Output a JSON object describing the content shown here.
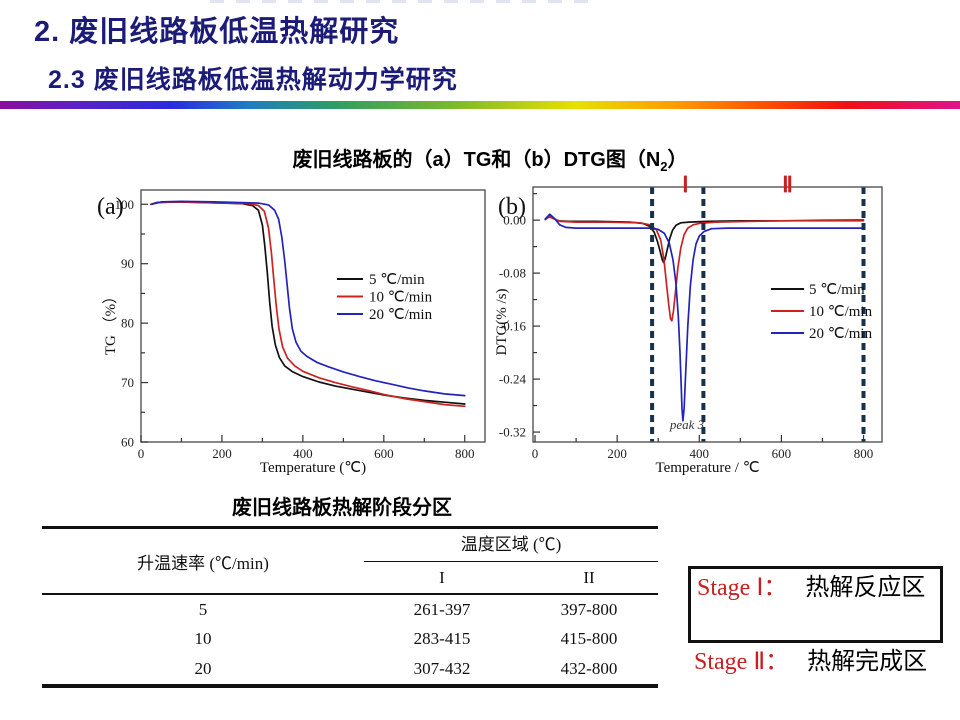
{
  "header": {
    "title": "2. 废旧线路板低温热解研究",
    "subtitle": "2.3 废旧线路板低温热解动力学研究"
  },
  "figure": {
    "title_pre": "废旧线路板的（a）TG和（b）DTG图（N",
    "title_sub": "2",
    "title_post": "）"
  },
  "colors": {
    "title_navy": "#1c1c78",
    "accent_red": "#c82020",
    "curve_black": "#111111",
    "curve_red": "#cc2222",
    "curve_blue": "#2323bb",
    "boundary_navy": "#17304e"
  },
  "chart_data": [
    {
      "type": "line",
      "panel_label": "(a)",
      "xlabel": "Temperature (℃)",
      "ylabel": "TG （%）",
      "xlim": [
        0,
        850
      ],
      "xticks": [
        0,
        200,
        400,
        600,
        800
      ],
      "x_minor_step": 100,
      "ylim": [
        60,
        102.4
      ],
      "yticks": [
        60,
        70,
        80,
        90,
        100
      ],
      "y_minor_step": 5,
      "ytick_format": "int",
      "grid": false,
      "legend_position": "middle-right",
      "series": [
        {
          "name": "5  ℃/min",
          "color": "#111111",
          "points": [
            [
              25,
              100
            ],
            [
              40,
              100.3
            ],
            [
              80,
              100.4
            ],
            [
              150,
              100.3
            ],
            [
              250,
              100.1
            ],
            [
              275,
              99.8
            ],
            [
              290,
              99
            ],
            [
              300,
              96.5
            ],
            [
              306,
              93
            ],
            [
              312,
              88.5
            ],
            [
              318,
              83.5
            ],
            [
              324,
              79.5
            ],
            [
              332,
              76.3
            ],
            [
              342,
              74.2
            ],
            [
              355,
              72.8
            ],
            [
              375,
              71.8
            ],
            [
              400,
              71
            ],
            [
              440,
              70.1
            ],
            [
              480,
              69.4
            ],
            [
              520,
              68.9
            ],
            [
              560,
              68.4
            ],
            [
              600,
              67.9
            ],
            [
              650,
              67.4
            ],
            [
              700,
              67
            ],
            [
              750,
              66.7
            ],
            [
              800,
              66.4
            ]
          ]
        },
        {
          "name": "10 ℃/min",
          "color": "#cc2222",
          "points": [
            [
              25,
              100
            ],
            [
              45,
              100.3
            ],
            [
              90,
              100.4
            ],
            [
              160,
              100.3
            ],
            [
              265,
              100.1
            ],
            [
              290,
              99.8
            ],
            [
              305,
              98.8
            ],
            [
              315,
              96
            ],
            [
              322,
              92
            ],
            [
              328,
              87.5
            ],
            [
              334,
              83
            ],
            [
              341,
              79
            ],
            [
              350,
              76
            ],
            [
              362,
              74.1
            ],
            [
              380,
              72.8
            ],
            [
              400,
              71.9
            ],
            [
              440,
              70.8
            ],
            [
              480,
              70
            ],
            [
              520,
              69.3
            ],
            [
              560,
              68.7
            ],
            [
              600,
              68
            ],
            [
              650,
              67.3
            ],
            [
              700,
              66.8
            ],
            [
              750,
              66.3
            ],
            [
              800,
              66
            ]
          ]
        },
        {
          "name": "20 ℃/min",
          "color": "#2323bb",
          "points": [
            [
              25,
              100
            ],
            [
              50,
              100.4
            ],
            [
              100,
              100.5
            ],
            [
              180,
              100.4
            ],
            [
              290,
              100.2
            ],
            [
              315,
              99.9
            ],
            [
              330,
              99
            ],
            [
              340,
              97.5
            ],
            [
              348,
              94.5
            ],
            [
              355,
              90.5
            ],
            [
              361,
              86.5
            ],
            [
              367,
              82.5
            ],
            [
              374,
              79
            ],
            [
              383,
              76.8
            ],
            [
              395,
              75.3
            ],
            [
              410,
              74.4
            ],
            [
              435,
              73.4
            ],
            [
              465,
              72.6
            ],
            [
              500,
              71.8
            ],
            [
              540,
              71
            ],
            [
              580,
              70.3
            ],
            [
              620,
              69.7
            ],
            [
              660,
              69.1
            ],
            [
              700,
              68.6
            ],
            [
              750,
              68.1
            ],
            [
              800,
              67.8
            ]
          ]
        }
      ]
    },
    {
      "type": "line",
      "panel_label": "(b)",
      "xlabel": "Temperature / ℃",
      "ylabel": "DTG(% /s)",
      "xlim": [
        -5,
        845
      ],
      "xticks": [
        0,
        200,
        400,
        600,
        800
      ],
      "x_minor_step": 100,
      "ylim": [
        -0.335,
        0.05
      ],
      "yticks": [
        0,
        -0.08,
        -0.16,
        -0.24,
        -0.32
      ],
      "y_minor_step": 0.04,
      "ytick_format": "2dp",
      "grid": false,
      "region_labels": [
        {
          "text": "Ⅰ",
          "x": 366
        },
        {
          "text": "Ⅱ",
          "x": 615
        }
      ],
      "boundaries_x": [
        285,
        410,
        800
      ],
      "annotation": {
        "text": "peak 3",
        "x": 370,
        "y": -0.315
      },
      "series": [
        {
          "name": "5  ℃/min",
          "color": "#111111",
          "points": [
            [
              25,
              0.001
            ],
            [
              33,
              0.006
            ],
            [
              42,
              0.004
            ],
            [
              55,
              -0.001
            ],
            [
              80,
              -0.002
            ],
            [
              150,
              -0.002
            ],
            [
              230,
              -0.003
            ],
            [
              262,
              -0.005
            ],
            [
              278,
              -0.009
            ],
            [
              290,
              -0.018
            ],
            [
              298,
              -0.032
            ],
            [
              305,
              -0.048
            ],
            [
              310,
              -0.06
            ],
            [
              313,
              -0.064
            ],
            [
              317,
              -0.058
            ],
            [
              322,
              -0.044
            ],
            [
              328,
              -0.028
            ],
            [
              335,
              -0.015
            ],
            [
              343,
              -0.008
            ],
            [
              355,
              -0.004
            ],
            [
              375,
              -0.003
            ],
            [
              420,
              -0.002
            ],
            [
              500,
              -0.001
            ],
            [
              600,
              -0.001
            ],
            [
              700,
              -0.0005
            ],
            [
              800,
              0
            ]
          ]
        },
        {
          "name": "10 ℃/min",
          "color": "#cc2222",
          "points": [
            [
              25,
              0.001
            ],
            [
              35,
              0.005
            ],
            [
              46,
              0.002
            ],
            [
              62,
              -0.002
            ],
            [
              100,
              -0.003
            ],
            [
              180,
              -0.003
            ],
            [
              255,
              -0.004
            ],
            [
              280,
              -0.007
            ],
            [
              295,
              -0.014
            ],
            [
              306,
              -0.03
            ],
            [
              314,
              -0.06
            ],
            [
              320,
              -0.095
            ],
            [
              326,
              -0.13
            ],
            [
              330,
              -0.149
            ],
            [
              333,
              -0.152
            ],
            [
              337,
              -0.138
            ],
            [
              342,
              -0.108
            ],
            [
              348,
              -0.072
            ],
            [
              355,
              -0.042
            ],
            [
              363,
              -0.022
            ],
            [
              372,
              -0.012
            ],
            [
              385,
              -0.007
            ],
            [
              400,
              -0.005
            ],
            [
              440,
              -0.003
            ],
            [
              520,
              -0.002
            ],
            [
              600,
              -0.001
            ],
            [
              700,
              -0.001
            ],
            [
              800,
              -0.001
            ]
          ]
        },
        {
          "name": "20 ℃/min",
          "color": "#2323bb",
          "points": [
            [
              25,
              0.002
            ],
            [
              36,
              0.009
            ],
            [
              48,
              0.002
            ],
            [
              60,
              -0.007
            ],
            [
              75,
              -0.011
            ],
            [
              100,
              -0.012
            ],
            [
              200,
              -0.012
            ],
            [
              280,
              -0.012
            ],
            [
              300,
              -0.014
            ],
            [
              315,
              -0.02
            ],
            [
              327,
              -0.035
            ],
            [
              336,
              -0.06
            ],
            [
              343,
              -0.095
            ],
            [
              349,
              -0.145
            ],
            [
              353,
              -0.2
            ],
            [
              356,
              -0.25
            ],
            [
              358,
              -0.285
            ],
            [
              360,
              -0.303
            ],
            [
              363,
              -0.285
            ],
            [
              367,
              -0.23
            ],
            [
              372,
              -0.16
            ],
            [
              378,
              -0.1
            ],
            [
              385,
              -0.06
            ],
            [
              392,
              -0.036
            ],
            [
              400,
              -0.024
            ],
            [
              412,
              -0.017
            ],
            [
              430,
              -0.013
            ],
            [
              470,
              -0.012
            ],
            [
              550,
              -0.012
            ],
            [
              650,
              -0.012
            ],
            [
              750,
              -0.012
            ],
            [
              800,
              -0.012
            ]
          ]
        }
      ]
    }
  ],
  "table": {
    "title": "废旧线路板热解阶段分区",
    "col1_header": "升温速率 (℃/min)",
    "group_header": "温度区域 (℃)",
    "sub_headers": [
      "I",
      "II"
    ],
    "rows": [
      [
        "5",
        "261-397",
        "397-800"
      ],
      [
        "10",
        "283-415",
        "415-800"
      ],
      [
        "20",
        "307-432",
        "432-800"
      ]
    ]
  },
  "stage_box": {
    "stage1_label": "Stage Ⅰ：",
    "stage1_text": "热解反应区",
    "stage2_label": "Stage Ⅱ：",
    "stage2_text": "热解完成区"
  }
}
